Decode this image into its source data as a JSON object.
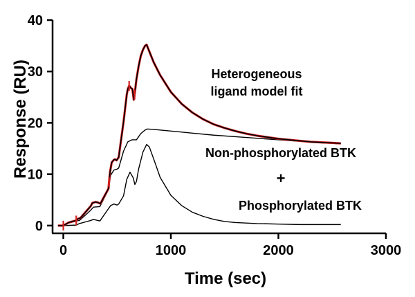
{
  "chart_data": {
    "type": "line",
    "xlabel": "Time (sec)",
    "ylabel": "Response (RU)",
    "xlim": [
      -100,
      3000
    ],
    "ylim": [
      -1.5,
      40
    ],
    "xticks": [
      0,
      1000,
      2000,
      3000
    ],
    "yticks": [
      0,
      10,
      20,
      30,
      40
    ],
    "grid": false,
    "colors": {
      "data": "#d32222",
      "fit": "#000000",
      "components": "#000000",
      "axis": "#000000"
    },
    "series": [
      {
        "role": "data",
        "x": [
          -50,
          0,
          50,
          120,
          135,
          160,
          255,
          270,
          300,
          320,
          340,
          345,
          420,
          425,
          435,
          450,
          470,
          480,
          495,
          505,
          515,
          560,
          590,
          600,
          612,
          622,
          632,
          642,
          655,
          663,
          680,
          700,
          720,
          740,
          760,
          775,
          790,
          840,
          900,
          1000,
          1100,
          1200,
          1300,
          1400,
          1500,
          1600,
          1700,
          1800,
          1900,
          2000,
          2100,
          2200,
          2300,
          2400,
          2500,
          2580
        ],
        "y": [
          0,
          0,
          0.6,
          1.0,
          1.3,
          1.5,
          3.8,
          4.4,
          4.6,
          4.5,
          4.3,
          4.3,
          7.2,
          8.5,
          10.5,
          12.3,
          12.8,
          12.9,
          12.7,
          13.0,
          13.3,
          20.2,
          25.5,
          26.6,
          27.2,
          27.0,
          26.7,
          26.6,
          24.5,
          25.5,
          28.5,
          31.0,
          33.0,
          34.2,
          35.0,
          35.2,
          34.4,
          31.8,
          29.3,
          26.0,
          23.7,
          22.0,
          20.7,
          19.7,
          19.0,
          18.4,
          17.9,
          17.5,
          17.2,
          16.9,
          16.7,
          16.5,
          16.3,
          16.2,
          16.1,
          16.0
        ]
      },
      {
        "role": "fit",
        "name": "Heterogeneous ligand model fit",
        "x": [
          -50,
          0,
          50,
          120,
          135,
          160,
          255,
          270,
          300,
          320,
          340,
          345,
          420,
          425,
          435,
          450,
          470,
          480,
          495,
          505,
          515,
          560,
          590,
          600,
          612,
          622,
          632,
          642,
          655,
          663,
          680,
          700,
          720,
          740,
          760,
          775,
          790,
          840,
          900,
          1000,
          1100,
          1200,
          1300,
          1400,
          1500,
          1600,
          1700,
          1800,
          1900,
          2000,
          2100,
          2200,
          2300,
          2400,
          2500,
          2580
        ],
        "y": [
          0,
          0,
          0.6,
          1.0,
          1.3,
          1.5,
          3.8,
          4.4,
          4.6,
          4.5,
          4.3,
          4.3,
          7.2,
          8.5,
          10.5,
          12.3,
          12.8,
          12.9,
          12.7,
          13.0,
          13.3,
          20.2,
          25.5,
          26.6,
          27.2,
          27.0,
          26.7,
          26.6,
          24.5,
          25.5,
          28.5,
          31.0,
          33.0,
          34.2,
          35.0,
          35.2,
          34.4,
          31.8,
          29.3,
          26.0,
          23.7,
          22.0,
          20.7,
          19.7,
          19.0,
          18.4,
          17.9,
          17.5,
          17.2,
          16.9,
          16.7,
          16.5,
          16.3,
          16.2,
          16.1,
          16.0
        ]
      },
      {
        "role": "component",
        "name": "Non-phosphorylated BTK",
        "x": [
          0,
          50,
          120,
          150,
          255,
          280,
          340,
          420,
          440,
          470,
          500,
          515,
          560,
          600,
          640,
          680,
          720,
          760,
          780,
          850,
          1000,
          1200,
          1400,
          1600,
          1800,
          2000,
          2200,
          2400,
          2580
        ],
        "y": [
          0,
          0.5,
          0.9,
          1.0,
          3.0,
          3.6,
          3.7,
          7.0,
          9.8,
          10.8,
          11.0,
          11.2,
          14.5,
          16.3,
          16.7,
          16.7,
          17.9,
          18.6,
          18.8,
          18.7,
          18.4,
          18.0,
          17.6,
          17.3,
          17.0,
          16.7,
          16.4,
          16.1,
          15.9
        ]
      },
      {
        "role": "component",
        "name": "Phosphorylated BTK",
        "x": [
          0,
          120,
          150,
          255,
          280,
          340,
          420,
          440,
          470,
          500,
          515,
          560,
          590,
          620,
          650,
          665,
          680,
          700,
          740,
          775,
          800,
          850,
          900,
          1000,
          1100,
          1200,
          1300,
          1400,
          1500,
          1600,
          1800,
          2000,
          2200,
          2580
        ],
        "y": [
          0,
          0.1,
          0.4,
          1.0,
          1.2,
          0.9,
          3.3,
          3.9,
          4.2,
          4.0,
          4.2,
          5.8,
          9.0,
          10.4,
          9.3,
          8.0,
          8.6,
          11.0,
          14.3,
          15.8,
          15.3,
          12.4,
          9.4,
          5.9,
          3.9,
          2.6,
          1.8,
          1.2,
          0.8,
          0.6,
          0.4,
          0.3,
          0.2,
          0.2
        ]
      }
    ],
    "annotations": {
      "fit_label_line1": "Heterogeneous",
      "fit_label_line2": "ligand model fit",
      "nonphos_label": "Non-phosphorylated BTK",
      "plus_label": "+",
      "phos_label": "Phosphorylated BTK"
    }
  }
}
